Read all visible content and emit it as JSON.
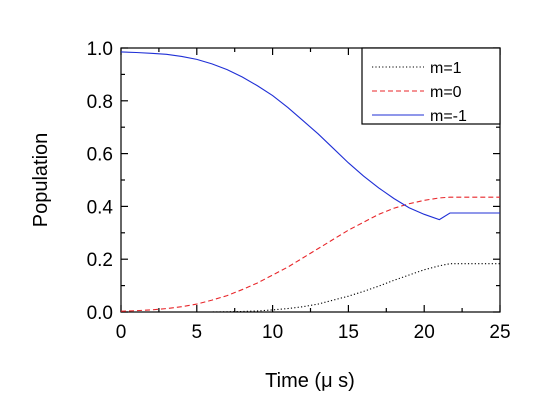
{
  "chart_data": {
    "type": "line",
    "xlabel": "Time (μ s)",
    "ylabel": "Population",
    "xlim": [
      0,
      25
    ],
    "ylim": [
      0,
      1.0
    ],
    "x_ticks": [
      0,
      5,
      10,
      15,
      20,
      25
    ],
    "y_ticks": [
      0.0,
      0.2,
      0.4,
      0.6,
      0.8,
      1.0
    ],
    "x_tick_labels": [
      "0",
      "5",
      "10",
      "15",
      "20",
      "25"
    ],
    "y_tick_labels": [
      "0.0",
      "0.2",
      "0.4",
      "0.6",
      "0.8",
      "1.0"
    ],
    "grid": false,
    "legend_position": "top-right",
    "x": [
      0,
      1,
      2,
      3,
      4,
      5,
      6,
      7,
      8,
      9,
      10,
      11,
      12,
      13,
      14,
      15,
      16,
      17,
      18,
      19,
      20,
      21,
      21.7,
      22,
      23,
      24,
      25
    ],
    "series": [
      {
        "name": "m=1",
        "color": "#000000",
        "style": "dotted",
        "values": [
          0,
          0,
          0,
          0,
          0,
          0,
          0,
          0.001,
          0.002,
          0.004,
          0.008,
          0.013,
          0.02,
          0.03,
          0.045,
          0.06,
          0.078,
          0.098,
          0.12,
          0.14,
          0.16,
          0.175,
          0.183,
          0.183,
          0.183,
          0.183,
          0.183
        ]
      },
      {
        "name": "m=0",
        "color": "#e8262a",
        "style": "dashed",
        "values": [
          0.003,
          0.005,
          0.008,
          0.013,
          0.02,
          0.03,
          0.045,
          0.062,
          0.085,
          0.11,
          0.14,
          0.17,
          0.205,
          0.24,
          0.275,
          0.31,
          0.34,
          0.37,
          0.393,
          0.41,
          0.423,
          0.432,
          0.435,
          0.435,
          0.435,
          0.435,
          0.435
        ]
      },
      {
        "name": "m=-1",
        "color": "#1f2fd6",
        "style": "solid",
        "values": [
          0.985,
          0.983,
          0.98,
          0.976,
          0.968,
          0.957,
          0.94,
          0.918,
          0.89,
          0.857,
          0.82,
          0.775,
          0.725,
          0.675,
          0.62,
          0.565,
          0.515,
          0.47,
          0.43,
          0.395,
          0.37,
          0.35,
          0.375,
          0.375,
          0.375,
          0.375,
          0.375
        ]
      }
    ]
  }
}
